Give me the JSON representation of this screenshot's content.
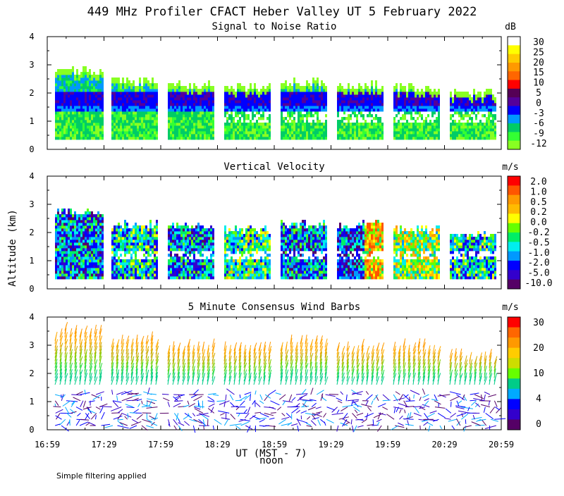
{
  "title": "449 MHz Profiler CFACT Heber Valley UT  5 February 2022",
  "ylabel": "Altitude (km)",
  "xlabel": "UT  (MST - 7)",
  "xlabel2": "noon",
  "footnote": "Simple filtering applied",
  "x_ticks": [
    "16:59",
    "17:29",
    "17:59",
    "18:29",
    "18:59",
    "19:29",
    "19:59",
    "20:29",
    "20:59"
  ],
  "y_ticks": [
    "0",
    "1",
    "2",
    "3",
    "4"
  ],
  "chart_data": [
    {
      "type": "heatmap",
      "title": "Signal to Noise Ratio",
      "unit": "dB",
      "ylim": [
        0,
        4
      ],
      "colorbar_labels": [
        "30",
        "25",
        "20",
        "15",
        "10",
        "5",
        "0",
        "-3",
        "-6",
        "-9",
        "-12"
      ],
      "colorbar_colors": [
        "#ffffff",
        "#ffff00",
        "#ffcc00",
        "#ff9900",
        "#ff6600",
        "#ff0000",
        "#550055",
        "#550099",
        "#0000ff",
        "#0099ff",
        "#00cc66",
        "#33ff33",
        "#88ff22"
      ]
    },
    {
      "type": "heatmap",
      "title": "Vertical Velocity",
      "unit": "m/s",
      "ylim": [
        0,
        4
      ],
      "colorbar_labels": [
        "2.0",
        "1.0",
        "0.5",
        "0.2",
        "0.0",
        "-0.2",
        "-0.5",
        "-1.0",
        "-2.0",
        "-5.0",
        "-10.0"
      ],
      "colorbar_colors": [
        "#ff0000",
        "#ff5500",
        "#ff9900",
        "#ffbb00",
        "#ffff00",
        "#66ff00",
        "#00ee66",
        "#00eeee",
        "#0099ff",
        "#0000ff",
        "#3300cc",
        "#550066"
      ]
    },
    {
      "type": "scatter",
      "title": "5 Minute Consensus Wind Barbs",
      "unit": "m/s",
      "ylim": [
        0,
        4
      ],
      "colorbar_labels": [
        "30",
        "20",
        "10",
        "4",
        "0"
      ],
      "colorbar_colors": [
        "#ff0000",
        "#ff6600",
        "#ff9900",
        "#ffcc00",
        "#ccdd00",
        "#66ff00",
        "#00cc88",
        "#00aaff",
        "#0000ff",
        "#3300cc",
        "#550066"
      ]
    }
  ]
}
